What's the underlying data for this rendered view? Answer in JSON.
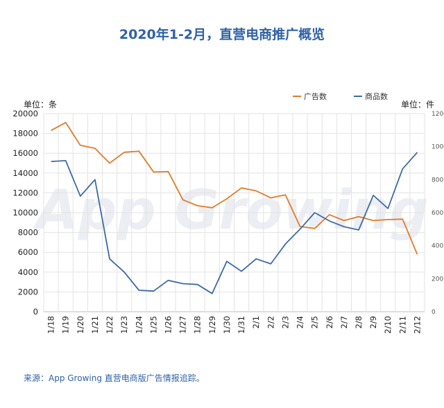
{
  "chart_data": {
    "type": "line",
    "title": "2020年1-2月，直营电商推广概览",
    "categories": [
      "1/18",
      "1/19",
      "1/20",
      "1/21",
      "1/22",
      "1/23",
      "1/24",
      "1/25",
      "1/26",
      "1/27",
      "1/28",
      "1/29",
      "1/30",
      "1/31",
      "2/1",
      "2/2",
      "2/3",
      "2/4",
      "2/5",
      "2/6",
      "2/7",
      "2/8",
      "2/9",
      "2/10",
      "2/11",
      "2/12"
    ],
    "series": [
      {
        "name": "广告数",
        "axis": "left",
        "color": "#e07b26",
        "values": [
          18300,
          19100,
          16800,
          16500,
          15000,
          16100,
          16200,
          14100,
          14150,
          11300,
          10700,
          10500,
          11400,
          12500,
          12200,
          11500,
          11800,
          8600,
          8400,
          9800,
          9200,
          9600,
          9200,
          9300,
          9350,
          5800
        ]
      },
      {
        "name": "商品数",
        "axis": "right",
        "color": "#3d6aa5",
        "values": [
          910,
          915,
          700,
          800,
          320,
          240,
          130,
          125,
          190,
          170,
          165,
          110,
          305,
          245,
          320,
          290,
          410,
          500,
          600,
          550,
          515,
          495,
          705,
          625,
          865,
          965
        ]
      }
    ],
    "left_axis": {
      "unit": "单位：条",
      "ylim": [
        0,
        20000
      ],
      "ticks": [
        "0",
        "2000",
        "4000",
        "6000",
        "8000",
        "10000",
        "12000",
        "14000",
        "16000",
        "18000",
        "20000"
      ]
    },
    "right_axis": {
      "unit": "单位：件",
      "ylim": [
        0,
        1200
      ],
      "ticks": [
        "0",
        "200",
        "400",
        "600",
        "800",
        "1000",
        "1200"
      ]
    },
    "grid": true,
    "legend_position": "top-right",
    "watermark": "App Growing",
    "source": "来源：App Growing 直营电商版广告情报追踪。"
  }
}
